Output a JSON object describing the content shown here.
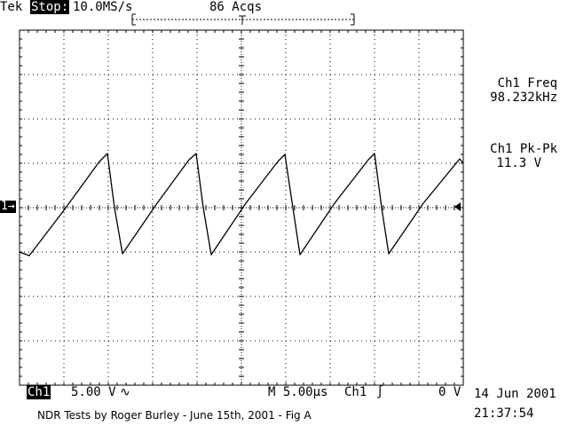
{
  "header": {
    "brand": "Tek",
    "run_state": "Stop:",
    "sample_rate": "10.0MS/s",
    "acquisitions": "86 Acqs"
  },
  "measurements": [
    {
      "label": "Ch1 Freq",
      "value": "98.232kHz"
    },
    {
      "label": "Ch1 Pk-Pk",
      "value": "11.3 V"
    }
  ],
  "channel_marker": "1→",
  "footer": {
    "channel": "Ch1",
    "volts_per_div": "5.00 V",
    "coupling_symbol": "∿",
    "timebase": "M 5.00µs",
    "trigger_source": "Ch1",
    "trigger_slope_symbol": "∫",
    "trigger_level": "0 V",
    "date": "14 Jun 2001",
    "time": "21:37:54"
  },
  "caption": "NDR Tests by Roger Burley - June 15th, 2001 - Fig A",
  "chart_data": {
    "type": "line",
    "title": "",
    "xlabel": "",
    "ylabel": "",
    "grid": true,
    "x_divisions": 10,
    "y_divisions": 8,
    "xlim": [
      -25,
      25
    ],
    "ylim": [
      -20,
      20
    ],
    "x_unit": "µs",
    "y_unit": "V",
    "series": [
      {
        "color": "#000000",
        "x": [
          -25.0,
          -23.9,
          -20.0,
          -16.0,
          -15.1,
          -14.3,
          -13.4,
          -9.5,
          -5.9,
          -5.1,
          -4.3,
          -3.4,
          0.5,
          4.1,
          4.9,
          5.8,
          6.6,
          10.5,
          14.3,
          15.0,
          15.8,
          16.6,
          20.5,
          24.6,
          25.0
        ],
        "y": [
          -5.0,
          -5.4,
          -0.3,
          5.2,
          6.1,
          0.0,
          -5.2,
          0.5,
          5.4,
          6.1,
          0.0,
          -5.3,
          0.5,
          5.2,
          6.0,
          0.0,
          -5.3,
          0.5,
          5.4,
          6.1,
          0.0,
          -5.2,
          0.5,
          5.5,
          5.0
        ]
      }
    ]
  }
}
